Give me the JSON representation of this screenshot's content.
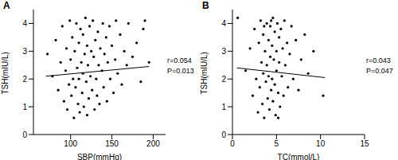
{
  "chart_data": [
    {
      "type": "scatter",
      "title": "A",
      "x_label": "SBP(mmHg)",
      "y_label": "TSH(mIU/L)",
      "color": "#000000",
      "marker": "circle",
      "grid": false,
      "xlim": [
        55,
        215
      ],
      "xticks": [
        100,
        150,
        200
      ],
      "ylim": [
        0,
        4.5
      ],
      "yticks": [
        0,
        1,
        2,
        3,
        4
      ],
      "x": [
        72,
        78,
        82,
        85,
        88,
        90,
        92,
        94,
        95,
        96,
        98,
        99,
        100,
        101,
        102,
        103,
        104,
        105,
        106,
        107,
        108,
        109,
        110,
        110,
        111,
        112,
        113,
        114,
        115,
        115,
        116,
        117,
        118,
        119,
        120,
        120,
        121,
        122,
        123,
        124,
        125,
        126,
        127,
        128,
        129,
        130,
        131,
        132,
        133,
        134,
        135,
        136,
        138,
        139,
        140,
        141,
        143,
        144,
        145,
        147,
        148,
        150,
        152,
        154,
        155,
        157,
        160,
        162,
        165,
        168,
        170,
        175,
        180,
        185,
        190,
        195,
        188
      ],
      "y": [
        2.9,
        2.1,
        3.4,
        1.6,
        2.6,
        3.9,
        1.2,
        2.3,
        3.1,
        0.9,
        1.8,
        4.1,
        2.7,
        1.4,
        3.5,
        2.0,
        0.6,
        3.0,
        1.7,
        4.0,
        2.4,
        1.1,
        3.3,
        2.0,
        0.8,
        3.8,
        2.6,
        1.5,
        3.6,
        2.2,
        1.0,
        2.9,
        4.2,
        1.9,
        3.2,
        0.7,
        2.5,
        1.3,
        3.9,
        2.1,
        3.0,
        1.6,
        4.1,
        2.8,
        0.9,
        3.4,
        2.0,
        1.4,
        3.7,
        2.5,
        1.1,
        3.1,
        2.3,
        4.0,
        1.7,
        2.9,
        3.5,
        1.2,
        2.6,
        3.9,
        2.0,
        3.2,
        1.5,
        2.7,
        4.1,
        2.2,
        3.6,
        1.8,
        3.0,
        2.5,
        4.0,
        2.8,
        3.3,
        1.9,
        4.1,
        2.6,
        3.8
      ],
      "trend_x": [
        70,
        195
      ],
      "trend_y": [
        2.1,
        2.45
      ],
      "annotations": [
        "r=0.054",
        "P=0.013"
      ]
    },
    {
      "type": "scatter",
      "title": "B",
      "x_label": "TC(mmol/L)",
      "y_label": "TSH(mIU/L)",
      "color": "#000000",
      "marker": "circle",
      "grid": false,
      "xlim": [
        0,
        15
      ],
      "xticks": [
        0,
        5,
        10,
        15
      ],
      "ylim": [
        0,
        4.5
      ],
      "yticks": [
        0,
        1,
        2,
        3,
        4
      ],
      "x": [
        0.6,
        1.5,
        2.0,
        2.3,
        2.5,
        2.7,
        2.9,
        3.0,
        3.1,
        3.2,
        3.3,
        3.4,
        3.5,
        3.5,
        3.6,
        3.7,
        3.8,
        3.9,
        3.9,
        4.0,
        4.1,
        4.1,
        4.2,
        4.3,
        4.3,
        4.4,
        4.5,
        4.5,
        4.6,
        4.6,
        4.7,
        4.8,
        4.8,
        4.9,
        5.0,
        5.0,
        5.1,
        5.2,
        5.3,
        5.3,
        5.4,
        5.5,
        5.6,
        5.7,
        5.8,
        5.9,
        6.0,
        6.2,
        6.3,
        6.5,
        6.7,
        6.9,
        7.2,
        7.5,
        7.8,
        8.2,
        8.6,
        9.2,
        10.3,
        5.2,
        4.4,
        3.6
      ],
      "y": [
        4.2,
        2.3,
        3.1,
        1.4,
        3.8,
        2.0,
        0.8,
        3.3,
        1.7,
        4.1,
        2.6,
        1.1,
        3.6,
        2.2,
        0.6,
        3.0,
        1.9,
        4.0,
        2.5,
        1.3,
        3.4,
        2.1,
        0.9,
        3.9,
        2.8,
        1.6,
        3.2,
        2.0,
        4.2,
        1.2,
        2.7,
        3.7,
        1.8,
        0.7,
        3.0,
        2.3,
        4.0,
        1.5,
        3.5,
        2.6,
        1.0,
        3.8,
        2.1,
        3.1,
        1.4,
        4.1,
        2.5,
        3.3,
        1.7,
        2.9,
        3.9,
        2.0,
        3.4,
        1.6,
        2.7,
        3.6,
        2.2,
        3.0,
        1.4,
        0.6,
        4.1,
        3.9
      ],
      "trend_x": [
        0.5,
        10.5
      ],
      "trend_y": [
        2.4,
        2.05
      ],
      "annotations": [
        "r=0.043",
        "P=0.047"
      ]
    }
  ]
}
